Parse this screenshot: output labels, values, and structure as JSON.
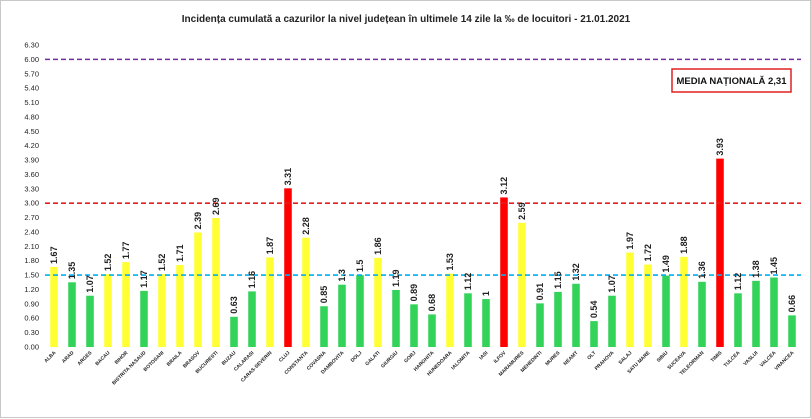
{
  "chart_data": {
    "type": "bar",
    "title": "Incidența cumulată a cazurilor la nivel județean în ultimele 14 zile la ‰ de locuitori - 21.01.2021",
    "xlabel": "",
    "ylabel": "",
    "ylim": [
      0,
      6.3
    ],
    "yticks": [
      "0.00",
      "0.30",
      "0.60",
      "0.90",
      "1.20",
      "1.50",
      "1.80",
      "2.10",
      "2.40",
      "2.70",
      "3.00",
      "3.30",
      "3.60",
      "3.90",
      "4.20",
      "4.50",
      "4.80",
      "5.10",
      "5.40",
      "5.70",
      "6.00",
      "6.30"
    ],
    "grid": false,
    "categories": [
      "ALBA",
      "ARAD",
      "ARGES",
      "BACAU",
      "BIHOR",
      "BISTRITA NASAUD",
      "BOTOSANI",
      "BRAILA",
      "BRASOV",
      "BUCURESTI",
      "BUZAU",
      "CALARASI",
      "CARAS-SEVERIN",
      "CLUJ",
      "CONSTANTA",
      "COVASNA",
      "DAMBOVITA",
      "DOLJ",
      "GALATI",
      "GIURGIU",
      "GORJ",
      "HARGHITA",
      "HUNEDOARA",
      "IALOMITA",
      "IASI",
      "ILFOV",
      "MARAMURES",
      "MEHEDINTI",
      "MURES",
      "NEAMT",
      "OLT",
      "PRAHOVA",
      "SALAJ",
      "SATU MARE",
      "SIBIU",
      "SUCEAVA",
      "TELEORMAN",
      "TIMIS",
      "TULCEA",
      "VASLUI",
      "VALCEA",
      "VRANCEA"
    ],
    "values": [
      1.67,
      1.35,
      1.07,
      1.52,
      1.77,
      1.17,
      1.52,
      1.71,
      2.39,
      2.69,
      0.63,
      1.16,
      1.87,
      3.31,
      2.28,
      0.85,
      1.3,
      1.5,
      1.86,
      1.19,
      0.89,
      0.68,
      1.53,
      1.12,
      1,
      3.12,
      2.59,
      0.91,
      1.15,
      1.32,
      0.54,
      1.07,
      1.97,
      1.72,
      1.49,
      1.88,
      1.36,
      3.93,
      1.12,
      1.38,
      1.45,
      0.66
    ],
    "value_labels": [
      "1.67",
      "1.35",
      "1.07",
      "1.52",
      "1.77",
      "1.17",
      "1.52",
      "1.71",
      "2.39",
      "2.69",
      "0.63",
      "1.16",
      "1.87",
      "3.31",
      "2.28",
      "0.85",
      "1.3",
      "1.5",
      "1.86",
      "1.19",
      "0.89",
      "0.68",
      "1.53",
      "1.12",
      "1",
      "3.12",
      "2.59",
      "0.91",
      "1.15",
      "1.32",
      "0.54",
      "1.07",
      "1.97",
      "1.72",
      "1.49",
      "1.88",
      "1.36",
      "3.93",
      "1.12",
      "1.38",
      "1.45",
      "0.66"
    ],
    "reference_lines": [
      {
        "value": 6.0,
        "color": "#7030a0"
      },
      {
        "value": 3.0,
        "color": "#e02020"
      },
      {
        "value": 1.5,
        "color": "#00b0f0"
      }
    ],
    "colors": {
      "low": "#33d35a",
      "mid": "#ffff33",
      "high": "#ff0000"
    },
    "thresholds": {
      "mid": 1.5,
      "high": 3.0
    },
    "annotation": "MEDIA NAȚIONALĂ 2,31"
  }
}
